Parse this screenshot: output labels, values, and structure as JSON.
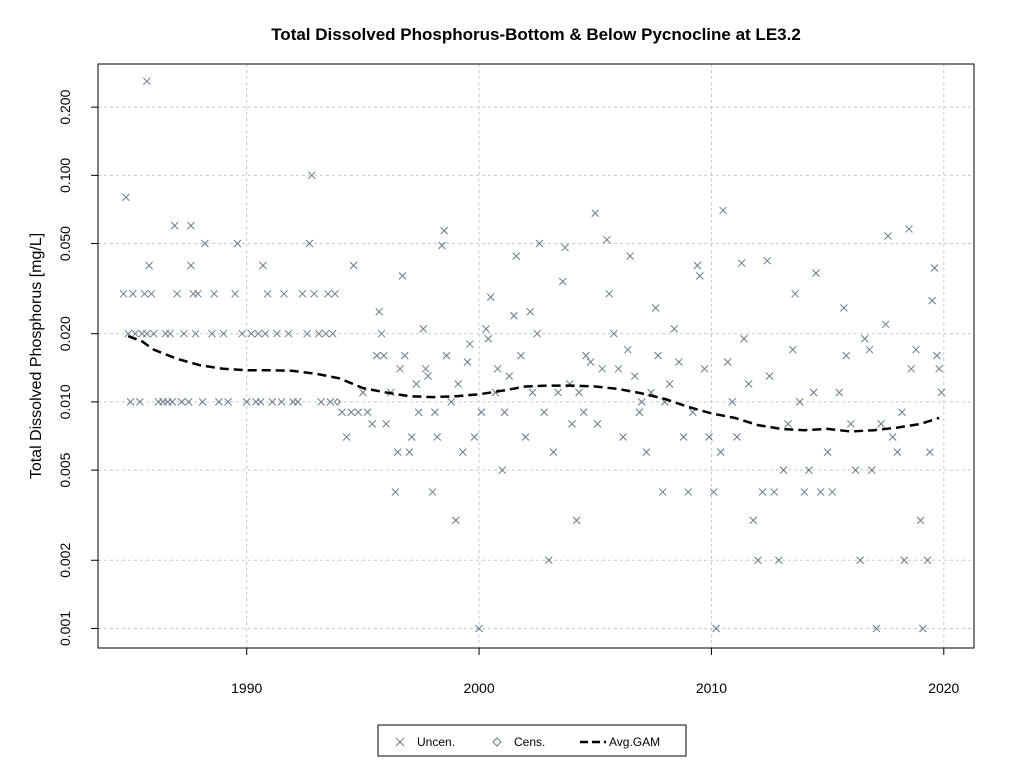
{
  "chart_data": {
    "type": "scatter",
    "title": "Total Dissolved Phosphorus-Bottom & Below Pycnocline at LE3.2",
    "xlabel": "",
    "ylabel": "Total Dissolved Phosphorus [mg/L]",
    "x_scale": "linear",
    "y_scale": "log",
    "xlim": [
      1983.6,
      2021.3
    ],
    "ylim": [
      0.00082,
      0.31
    ],
    "grid": true,
    "x_ticks": [
      1990,
      2000,
      2010,
      2020
    ],
    "x_tick_labels": [
      "1990",
      "2000",
      "2010",
      "2020"
    ],
    "y_ticks": [
      0.001,
      0.002,
      0.005,
      0.01,
      0.02,
      0.05,
      0.1,
      0.2
    ],
    "y_tick_labels": [
      "0.001",
      "0.002",
      "0.005",
      "0.010",
      "0.020",
      "0.050",
      "0.100",
      "0.200"
    ],
    "legend": {
      "placement": "bottom-center",
      "entries": [
        {
          "label": "Uncen.",
          "marker": "x"
        },
        {
          "label": "Cens.",
          "marker": "diamond"
        },
        {
          "label": "Avg.GAM",
          "marker": "dashed-line"
        }
      ]
    },
    "colors": {
      "points": "#6a7a8c",
      "gam": "#000000",
      "grid": "#c8c8c8"
    },
    "series": [
      {
        "name": "Uncen.",
        "marker": "x",
        "points": [
          [
            1984.7,
            0.03
          ],
          [
            1984.8,
            0.08
          ],
          [
            1984.9,
            0.02
          ],
          [
            1985.0,
            0.01
          ],
          [
            1985.1,
            0.03
          ],
          [
            1985.2,
            0.02
          ],
          [
            1985.4,
            0.01
          ],
          [
            1985.5,
            0.02
          ],
          [
            1985.6,
            0.03
          ],
          [
            1985.7,
            0.02
          ],
          [
            1985.7,
            0.26
          ],
          [
            1985.8,
            0.04
          ],
          [
            1985.9,
            0.03
          ],
          [
            1986.0,
            0.02
          ],
          [
            1986.2,
            0.01
          ],
          [
            1986.4,
            0.01
          ],
          [
            1986.5,
            0.02
          ],
          [
            1986.6,
            0.01
          ],
          [
            1986.7,
            0.02
          ],
          [
            1986.8,
            0.01
          ],
          [
            1986.9,
            0.06
          ],
          [
            1987.0,
            0.03
          ],
          [
            1987.2,
            0.01
          ],
          [
            1987.3,
            0.02
          ],
          [
            1987.5,
            0.01
          ],
          [
            1987.6,
            0.04
          ],
          [
            1987.6,
            0.06
          ],
          [
            1987.7,
            0.03
          ],
          [
            1987.8,
            0.02
          ],
          [
            1987.9,
            0.03
          ],
          [
            1988.1,
            0.01
          ],
          [
            1988.2,
            0.05
          ],
          [
            1988.5,
            0.02
          ],
          [
            1988.6,
            0.03
          ],
          [
            1988.8,
            0.01
          ],
          [
            1989.0,
            0.02
          ],
          [
            1989.2,
            0.01
          ],
          [
            1989.5,
            0.03
          ],
          [
            1989.6,
            0.05
          ],
          [
            1989.8,
            0.02
          ],
          [
            1990.0,
            0.01
          ],
          [
            1990.2,
            0.02
          ],
          [
            1990.4,
            0.01
          ],
          [
            1990.5,
            0.02
          ],
          [
            1990.6,
            0.01
          ],
          [
            1990.7,
            0.04
          ],
          [
            1990.8,
            0.02
          ],
          [
            1990.9,
            0.03
          ],
          [
            1991.1,
            0.01
          ],
          [
            1991.3,
            0.02
          ],
          [
            1991.5,
            0.01
          ],
          [
            1991.6,
            0.03
          ],
          [
            1991.8,
            0.02
          ],
          [
            1992.0,
            0.01
          ],
          [
            1992.2,
            0.01
          ],
          [
            1992.4,
            0.03
          ],
          [
            1992.6,
            0.02
          ],
          [
            1992.7,
            0.05
          ],
          [
            1992.8,
            0.1
          ],
          [
            1992.9,
            0.03
          ],
          [
            1993.1,
            0.02
          ],
          [
            1993.2,
            0.01
          ],
          [
            1993.4,
            0.02
          ],
          [
            1993.5,
            0.03
          ],
          [
            1993.6,
            0.01
          ],
          [
            1993.7,
            0.02
          ],
          [
            1993.8,
            0.03
          ],
          [
            1994.1,
            0.009
          ],
          [
            1994.3,
            0.007
          ],
          [
            1994.5,
            0.009
          ],
          [
            1994.6,
            0.04
          ],
          [
            1994.8,
            0.009
          ],
          [
            1995.0,
            0.011
          ],
          [
            1995.2,
            0.009
          ],
          [
            1995.4,
            0.008
          ],
          [
            1995.6,
            0.016
          ],
          [
            1995.7,
            0.025
          ],
          [
            1995.8,
            0.02
          ],
          [
            1995.9,
            0.016
          ],
          [
            1996.0,
            0.008
          ],
          [
            1996.2,
            0.011
          ],
          [
            1996.4,
            0.004
          ],
          [
            1996.5,
            0.006
          ],
          [
            1996.6,
            0.014
          ],
          [
            1996.7,
            0.036
          ],
          [
            1996.8,
            0.016
          ],
          [
            1997.0,
            0.006
          ],
          [
            1997.1,
            0.007
          ],
          [
            1997.3,
            0.012
          ],
          [
            1997.4,
            0.009
          ],
          [
            1997.6,
            0.021
          ],
          [
            1997.7,
            0.014
          ],
          [
            1997.8,
            0.013
          ],
          [
            1998.0,
            0.004
          ],
          [
            1998.1,
            0.009
          ],
          [
            1998.2,
            0.007
          ],
          [
            1998.4,
            0.049
          ],
          [
            1998.5,
            0.057
          ],
          [
            1998.6,
            0.016
          ],
          [
            1998.8,
            0.01
          ],
          [
            1999.0,
            0.003
          ],
          [
            1999.1,
            0.012
          ],
          [
            1999.3,
            0.006
          ],
          [
            1999.5,
            0.015
          ],
          [
            1999.6,
            0.018
          ],
          [
            1999.8,
            0.007
          ],
          [
            2000.0,
            0.001
          ],
          [
            2000.1,
            0.009
          ],
          [
            2000.3,
            0.021
          ],
          [
            2000.4,
            0.019
          ],
          [
            2000.5,
            0.029
          ],
          [
            2000.7,
            0.011
          ],
          [
            2000.8,
            0.014
          ],
          [
            2001.0,
            0.005
          ],
          [
            2001.1,
            0.009
          ],
          [
            2001.3,
            0.013
          ],
          [
            2001.5,
            0.024
          ],
          [
            2001.6,
            0.044
          ],
          [
            2001.8,
            0.016
          ],
          [
            2002.0,
            0.007
          ],
          [
            2002.2,
            0.025
          ],
          [
            2002.3,
            0.011
          ],
          [
            2002.5,
            0.02
          ],
          [
            2002.6,
            0.05
          ],
          [
            2002.8,
            0.009
          ],
          [
            2003.0,
            0.002
          ],
          [
            2003.2,
            0.006
          ],
          [
            2003.4,
            0.011
          ],
          [
            2003.6,
            0.034
          ],
          [
            2003.7,
            0.048
          ],
          [
            2003.9,
            0.012
          ],
          [
            2004.0,
            0.008
          ],
          [
            2004.2,
            0.003
          ],
          [
            2004.3,
            0.011
          ],
          [
            2004.5,
            0.009
          ],
          [
            2004.6,
            0.016
          ],
          [
            2004.8,
            0.015
          ],
          [
            2005.0,
            0.068
          ],
          [
            2005.1,
            0.008
          ],
          [
            2005.3,
            0.014
          ],
          [
            2005.5,
            0.052
          ],
          [
            2005.6,
            0.03
          ],
          [
            2005.8,
            0.02
          ],
          [
            2006.0,
            0.014
          ],
          [
            2006.2,
            0.007
          ],
          [
            2006.4,
            0.017
          ],
          [
            2006.5,
            0.044
          ],
          [
            2006.7,
            0.013
          ],
          [
            2006.9,
            0.009
          ],
          [
            2007.0,
            0.01
          ],
          [
            2007.2,
            0.006
          ],
          [
            2007.4,
            0.011
          ],
          [
            2007.6,
            0.026
          ],
          [
            2007.7,
            0.016
          ],
          [
            2007.9,
            0.004
          ],
          [
            2008.0,
            0.01
          ],
          [
            2008.2,
            0.012
          ],
          [
            2008.4,
            0.021
          ],
          [
            2008.6,
            0.015
          ],
          [
            2008.8,
            0.007
          ],
          [
            2009.0,
            0.004
          ],
          [
            2009.2,
            0.009
          ],
          [
            2009.4,
            0.04
          ],
          [
            2009.5,
            0.036
          ],
          [
            2009.7,
            0.014
          ],
          [
            2009.9,
            0.007
          ],
          [
            2010.1,
            0.004
          ],
          [
            2010.2,
            0.001
          ],
          [
            2010.4,
            0.006
          ],
          [
            2010.5,
            0.07
          ],
          [
            2010.7,
            0.015
          ],
          [
            2010.9,
            0.01
          ],
          [
            2011.1,
            0.007
          ],
          [
            2011.3,
            0.041
          ],
          [
            2011.4,
            0.019
          ],
          [
            2011.6,
            0.012
          ],
          [
            2011.8,
            0.003
          ],
          [
            2012.0,
            0.002
          ],
          [
            2012.2,
            0.004
          ],
          [
            2012.4,
            0.042
          ],
          [
            2012.5,
            0.013
          ],
          [
            2012.7,
            0.004
          ],
          [
            2012.9,
            0.002
          ],
          [
            2013.1,
            0.005
          ],
          [
            2013.3,
            0.008
          ],
          [
            2013.5,
            0.017
          ],
          [
            2013.6,
            0.03
          ],
          [
            2013.8,
            0.01
          ],
          [
            2014.0,
            0.004
          ],
          [
            2014.2,
            0.005
          ],
          [
            2014.4,
            0.011
          ],
          [
            2014.5,
            0.037
          ],
          [
            2014.7,
            0.004
          ],
          [
            2015.0,
            0.006
          ],
          [
            2015.2,
            0.004
          ],
          [
            2015.5,
            0.011
          ],
          [
            2015.7,
            0.026
          ],
          [
            2015.8,
            0.016
          ],
          [
            2016.0,
            0.008
          ],
          [
            2016.2,
            0.005
          ],
          [
            2016.4,
            0.002
          ],
          [
            2016.6,
            0.019
          ],
          [
            2016.8,
            0.017
          ],
          [
            2016.9,
            0.005
          ],
          [
            2017.1,
            0.001
          ],
          [
            2017.3,
            0.008
          ],
          [
            2017.5,
            0.022
          ],
          [
            2017.6,
            0.054
          ],
          [
            2017.8,
            0.007
          ],
          [
            2018.0,
            0.006
          ],
          [
            2018.2,
            0.009
          ],
          [
            2018.3,
            0.002
          ],
          [
            2018.5,
            0.058
          ],
          [
            2018.6,
            0.014
          ],
          [
            2018.8,
            0.017
          ],
          [
            2019.0,
            0.003
          ],
          [
            2019.1,
            0.001
          ],
          [
            2019.3,
            0.002
          ],
          [
            2019.4,
            0.006
          ],
          [
            2019.5,
            0.028
          ],
          [
            2019.6,
            0.039
          ],
          [
            2019.7,
            0.016
          ],
          [
            2019.8,
            0.014
          ],
          [
            2019.9,
            0.011
          ]
        ]
      },
      {
        "name": "Cens.",
        "marker": "diamond",
        "points": [
          [
            1993.9,
            0.01
          ]
        ]
      },
      {
        "name": "Avg.GAM",
        "marker": "dashed-line",
        "points": [
          [
            1984.9,
            0.0195
          ],
          [
            1985.5,
            0.0185
          ],
          [
            1986.0,
            0.017
          ],
          [
            1987.0,
            0.0155
          ],
          [
            1988.0,
            0.0145
          ],
          [
            1989.0,
            0.014
          ],
          [
            1990.0,
            0.0138
          ],
          [
            1991.0,
            0.0138
          ],
          [
            1992.0,
            0.0137
          ],
          [
            1993.0,
            0.0133
          ],
          [
            1994.0,
            0.0127
          ],
          [
            1995.0,
            0.0115
          ],
          [
            1996.0,
            0.011
          ],
          [
            1997.0,
            0.0106
          ],
          [
            1998.0,
            0.0105
          ],
          [
            1999.0,
            0.0106
          ],
          [
            2000.0,
            0.0108
          ],
          [
            2001.0,
            0.0112
          ],
          [
            2002.0,
            0.0117
          ],
          [
            2003.0,
            0.0118
          ],
          [
            2004.0,
            0.0118
          ],
          [
            2005.0,
            0.0117
          ],
          [
            2006.0,
            0.0114
          ],
          [
            2007.0,
            0.0109
          ],
          [
            2008.0,
            0.0103
          ],
          [
            2009.0,
            0.0095
          ],
          [
            2010.0,
            0.0089
          ],
          [
            2011.0,
            0.0085
          ],
          [
            2012.0,
            0.0079
          ],
          [
            2013.0,
            0.0076
          ],
          [
            2014.0,
            0.0075
          ],
          [
            2015.0,
            0.0076
          ],
          [
            2016.0,
            0.0074
          ],
          [
            2017.0,
            0.0075
          ],
          [
            2018.0,
            0.0077
          ],
          [
            2019.0,
            0.008
          ],
          [
            2019.8,
            0.0085
          ]
        ]
      }
    ]
  }
}
